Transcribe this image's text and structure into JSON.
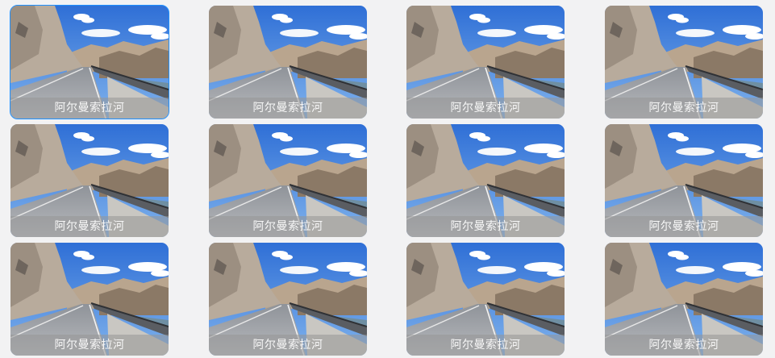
{
  "gallery": {
    "selected_index": 0,
    "items": [
      {
        "caption": "阿尔曼索拉河"
      },
      {
        "caption": "阿尔曼索拉河"
      },
      {
        "caption": "阿尔曼索拉河"
      },
      {
        "caption": "阿尔曼索拉河"
      },
      {
        "caption": "阿尔曼索拉河"
      },
      {
        "caption": "阿尔曼索拉河"
      },
      {
        "caption": "阿尔曼索拉河"
      },
      {
        "caption": "阿尔曼索拉河"
      },
      {
        "caption": "阿尔曼索拉河"
      },
      {
        "caption": "阿尔曼索拉河"
      },
      {
        "caption": "阿尔曼索拉河"
      },
      {
        "caption": "阿尔曼索拉河"
      }
    ]
  },
  "colors": {
    "selection_outline": "#1e90ff",
    "page_background": "#f2f2f3"
  }
}
